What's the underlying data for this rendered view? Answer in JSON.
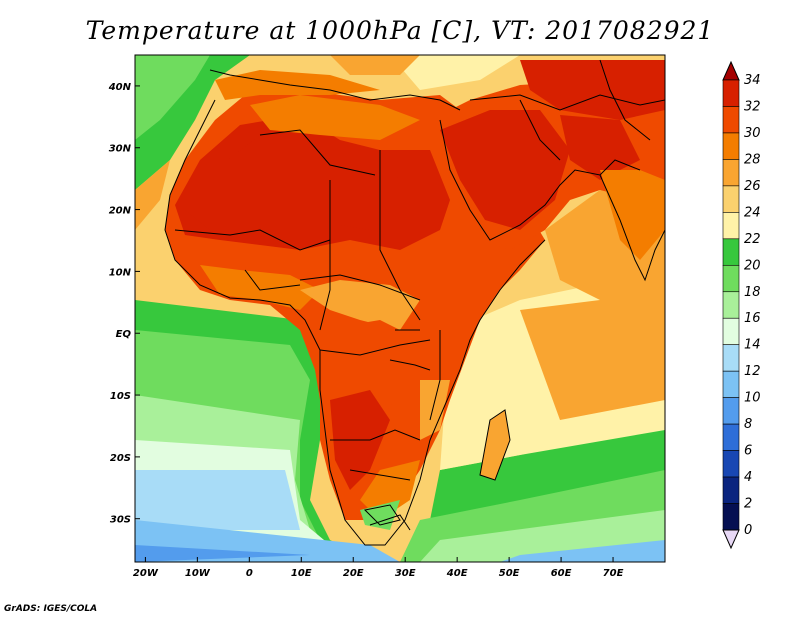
{
  "title": "Temperature at 1000hPa [C], VT: 2017082921",
  "credit": "GrADS: IGES/COLA",
  "map": {
    "type": "filled-contour",
    "lon_range": [
      -22,
      80
    ],
    "lat_range": [
      -37,
      45
    ],
    "lat_ticks": [
      {
        "label": "40N",
        "value": 40
      },
      {
        "label": "30N",
        "value": 30
      },
      {
        "label": "20N",
        "value": 20
      },
      {
        "label": "10N",
        "value": 10
      },
      {
        "label": "EQ",
        "value": 0
      },
      {
        "label": "10S",
        "value": -10
      },
      {
        "label": "20S",
        "value": -20
      },
      {
        "label": "30S",
        "value": -30
      }
    ],
    "lon_ticks": [
      {
        "label": "20W",
        "value": -20
      },
      {
        "label": "10W",
        "value": -10
      },
      {
        "label": "0",
        "value": 0
      },
      {
        "label": "10E",
        "value": 10
      },
      {
        "label": "20E",
        "value": 20
      },
      {
        "label": "30E",
        "value": 30
      },
      {
        "label": "40E",
        "value": 40
      },
      {
        "label": "50E",
        "value": 50
      },
      {
        "label": "60E",
        "value": 60
      },
      {
        "label": "70E",
        "value": 70
      }
    ]
  },
  "colorbar": {
    "levels": [
      "34",
      "32",
      "30",
      "28",
      "26",
      "24",
      "22",
      "20",
      "18",
      "16",
      "14",
      "12",
      "10",
      "8",
      "6",
      "4",
      "2",
      "0"
    ],
    "colors": [
      "#a50000",
      "#d72000",
      "#ef4a00",
      "#f47d00",
      "#f9a531",
      "#fbd16e",
      "#fff2a8",
      "#37c83d",
      "#6fdc5e",
      "#a9f09a",
      "#e2fde0",
      "#a8dcf7",
      "#7cc2f4",
      "#539ced",
      "#2e6ed8",
      "#1847b3",
      "#0a247f",
      "#050f52"
    ]
  }
}
